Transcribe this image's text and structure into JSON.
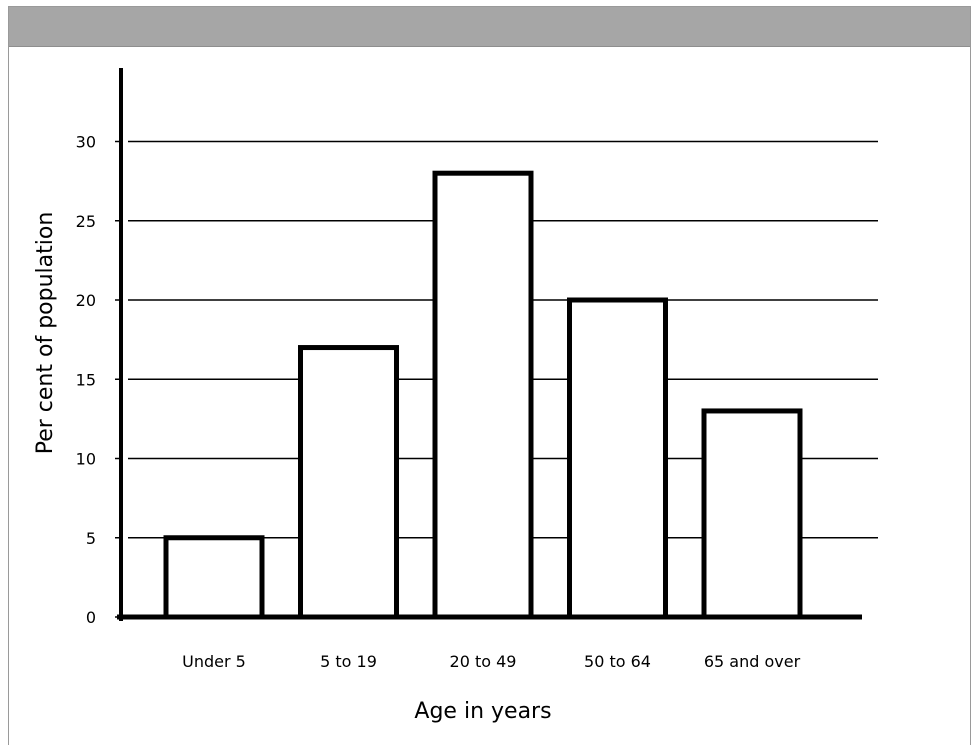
{
  "chart_data": {
    "type": "bar",
    "categories": [
      "Under 5",
      "5 to 19",
      "20 to 49",
      "50 to 64",
      "65 and over"
    ],
    "values": [
      5,
      17,
      28,
      20,
      13
    ],
    "title": "",
    "xlabel": "Age in years",
    "ylabel": "Per cent of population",
    "yticks": [
      0,
      5,
      10,
      15,
      20,
      25,
      30
    ],
    "ylim": [
      0,
      35
    ],
    "grid": true,
    "bar_fill": "#ffffff",
    "bar_stroke": "#000000"
  }
}
